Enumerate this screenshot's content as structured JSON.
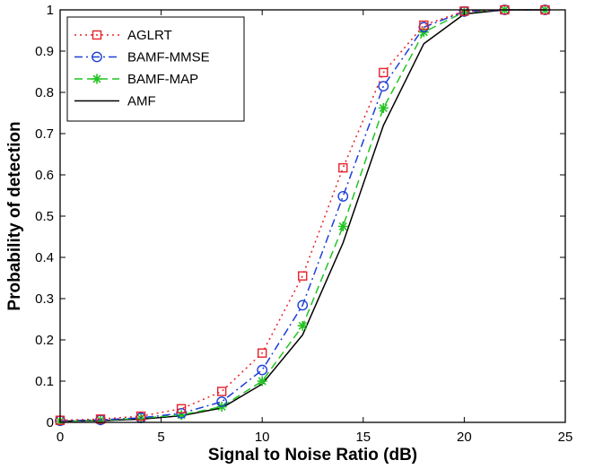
{
  "chart_data": {
    "type": "line",
    "title": "",
    "xlabel": "Signal to Noise Ratio (dB)",
    "ylabel": "Probability of detection",
    "xlim": [
      0,
      25
    ],
    "ylim": [
      0,
      1
    ],
    "xticks": [
      0,
      5,
      10,
      15,
      20,
      25
    ],
    "yticks": [
      0,
      0.1,
      0.2,
      0.3,
      0.4,
      0.5,
      0.6,
      0.7,
      0.8,
      0.9,
      1
    ],
    "xtick_labels": [
      "0",
      "5",
      "10",
      "15",
      "20",
      "25"
    ],
    "ytick_labels": [
      "0",
      "0.1",
      "0.2",
      "0.3",
      "0.4",
      "0.5",
      "0.6",
      "0.7",
      "0.8",
      "0.9",
      "1"
    ],
    "grid": false,
    "legend_position": "top-left",
    "x": [
      0,
      2,
      4,
      6,
      8,
      10,
      12,
      14,
      16,
      18,
      20,
      22,
      24
    ],
    "series": [
      {
        "name": "AGLRT",
        "color": "#e8202a",
        "line_style": "dotted",
        "marker": "square",
        "values": [
          0.005,
          0.008,
          0.015,
          0.033,
          0.075,
          0.168,
          0.355,
          0.617,
          0.848,
          0.963,
          0.997,
          1.0,
          1.0
        ]
      },
      {
        "name": "BAMF-MMSE",
        "color": "#1f3fd6",
        "line_style": "dash-dot",
        "marker": "circle",
        "values": [
          0.004,
          0.006,
          0.011,
          0.022,
          0.05,
          0.127,
          0.284,
          0.548,
          0.815,
          0.958,
          0.996,
          1.0,
          1.0
        ]
      },
      {
        "name": "BAMF-MAP",
        "color": "#22c422",
        "line_style": "dashed",
        "marker": "star",
        "values": [
          0.003,
          0.005,
          0.01,
          0.018,
          0.038,
          0.1,
          0.234,
          0.475,
          0.762,
          0.946,
          0.995,
          1.0,
          1.0
        ]
      },
      {
        "name": "AMF",
        "color": "#000000",
        "line_style": "solid",
        "marker": "none",
        "values": [
          0.003,
          0.004,
          0.008,
          0.016,
          0.035,
          0.093,
          0.212,
          0.435,
          0.72,
          0.918,
          0.99,
          1.0,
          1.0
        ]
      }
    ]
  }
}
